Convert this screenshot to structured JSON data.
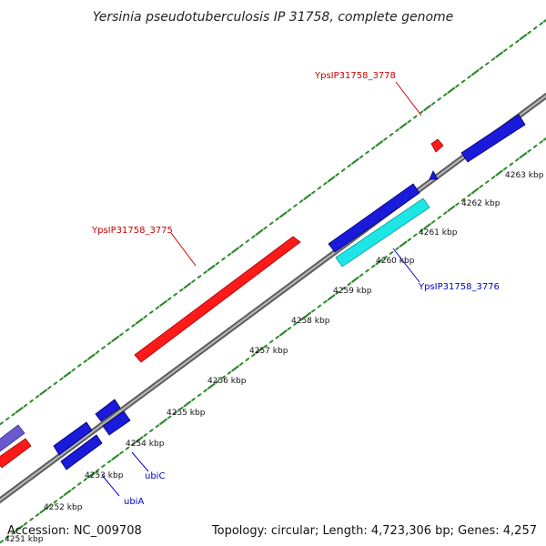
{
  "title": "Yersinia pseudotuberculosis IP 31758, complete genome",
  "footer": {
    "accession": "Accession: NC_009708",
    "summary": "Topology: circular; Length: 4,723,306 bp; Genes: 4,257"
  },
  "colors": {
    "background": "#ffffff",
    "backbone": "#808080",
    "dot": "#2f8a2f",
    "red_gene": "#ff1a1a",
    "blue_gene": "#1a1adb",
    "cyan_gene": "#1ee6e6",
    "purple_gene": "#6a5acd",
    "red_label": "#cc0000",
    "blue_label": "#0000cc"
  },
  "ticks": [
    {
      "label": "4251 kbp"
    },
    {
      "label": "4252 kbp"
    },
    {
      "label": "4253 kbp"
    },
    {
      "label": "4254 kbp"
    },
    {
      "label": "4255 kbp"
    },
    {
      "label": "4256 kbp"
    },
    {
      "label": "4257 kbp"
    },
    {
      "label": "4258 kbp"
    },
    {
      "label": "4259 kbp"
    },
    {
      "label": "4260 kbp"
    },
    {
      "label": "4261 kbp"
    },
    {
      "label": "4262 kbp"
    },
    {
      "label": "4263 kbp"
    }
  ],
  "gene_labels": [
    {
      "text": "YpsIP31758_3778",
      "color": "red"
    },
    {
      "text": "YpsIP31758_3775",
      "color": "red"
    },
    {
      "text": "YpsIP31758_3776",
      "color": "blue"
    },
    {
      "text": "ubiC",
      "color": "blue"
    },
    {
      "text": "ubiA",
      "color": "blue"
    }
  ]
}
